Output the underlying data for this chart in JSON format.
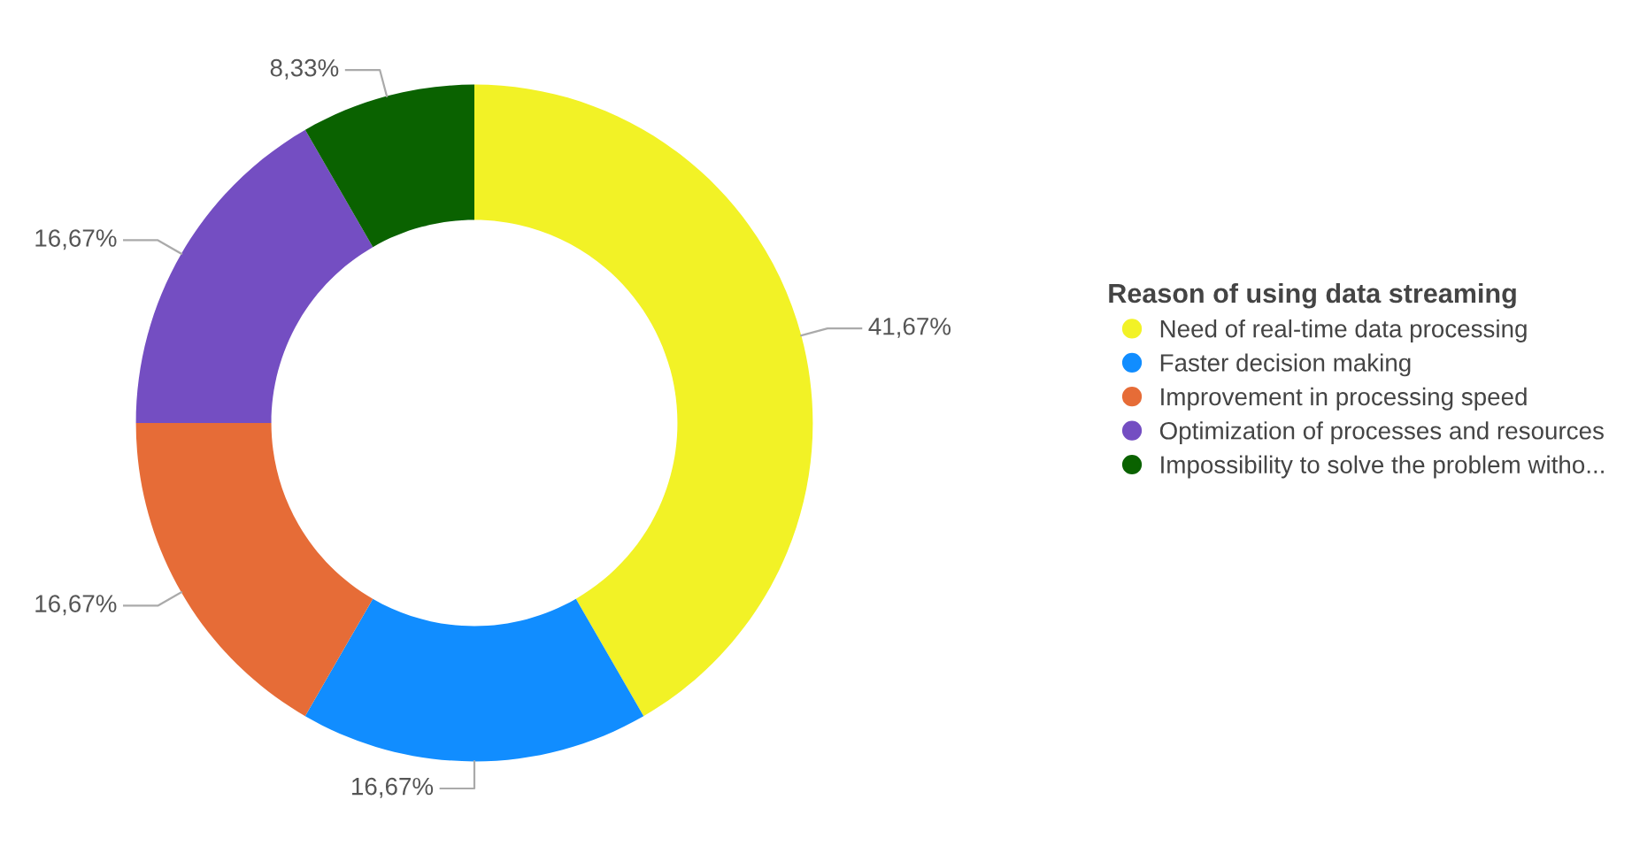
{
  "chart_data": {
    "type": "donut",
    "legend_title": "Reason of using data streaming",
    "categories": [
      "Need of real-time data processing",
      "Faster decision making",
      "Improvement in processing speed",
      "Optimization of processes and resources",
      "Impossibility to solve the problem witho..."
    ],
    "values": [
      41.67,
      16.67,
      16.67,
      16.67,
      8.33
    ],
    "colors": [
      "#f2f226",
      "#118dff",
      "#e66c37",
      "#744ec2",
      "#0a6200"
    ],
    "value_labels": [
      "41,67%",
      "16,67%",
      "16,67%",
      "16,67%",
      "8,33%"
    ],
    "legend": "right"
  }
}
